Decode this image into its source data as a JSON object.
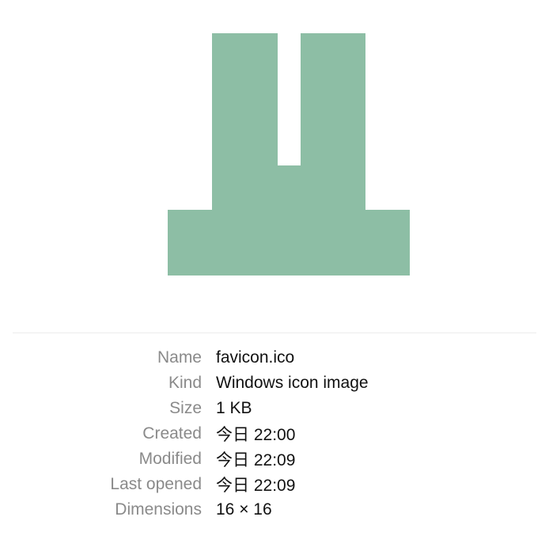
{
  "preview": {
    "icon_color": "#8dbea5",
    "icon_name": "favicon-glyph-icon"
  },
  "info": {
    "rows": [
      {
        "label": "Name",
        "value": "favicon.ico"
      },
      {
        "label": "Kind",
        "value": "Windows icon image"
      },
      {
        "label": "Size",
        "value": "1 KB"
      },
      {
        "label": "Created",
        "value": "今日 22:00"
      },
      {
        "label": "Modified",
        "value": "今日 22:09"
      },
      {
        "label": "Last opened",
        "value": "今日 22:09"
      },
      {
        "label": "Dimensions",
        "value": "16 × 16"
      }
    ]
  }
}
